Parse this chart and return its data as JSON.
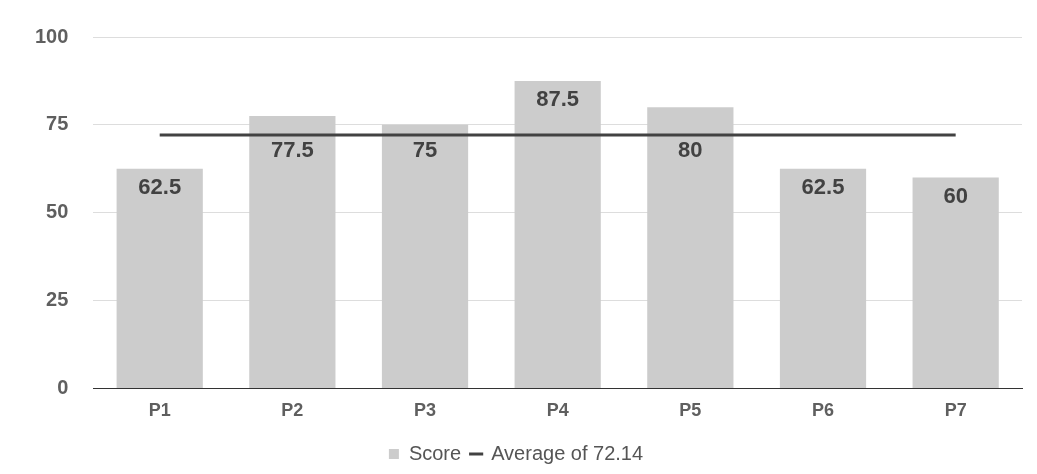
{
  "chart_data": {
    "type": "bar",
    "categories": [
      "P1",
      "P2",
      "P3",
      "P4",
      "P5",
      "P6",
      "P7"
    ],
    "series": [
      {
        "name": "Score",
        "color": "#cccccc",
        "values": [
          62.5,
          77.5,
          75,
          87.5,
          80,
          62.5,
          60
        ],
        "value_labels": [
          "62.5",
          "77.5",
          "75",
          "87.5",
          "80",
          "62.5",
          "60"
        ]
      },
      {
        "name": "Average of 72.14",
        "type": "line",
        "color": "#424242",
        "values": [
          72.14,
          72.14,
          72.14,
          72.14,
          72.14,
          72.14,
          72.14
        ]
      }
    ],
    "ylim": [
      0,
      100
    ],
    "yticks": [
      0,
      25,
      50,
      75,
      100
    ],
    "grid": "y",
    "legend": "bottom",
    "marker": "none",
    "line_style": "solid"
  }
}
